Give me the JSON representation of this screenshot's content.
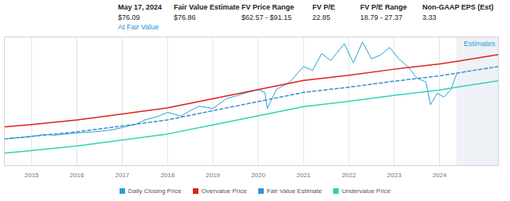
{
  "header": [
    {
      "label": "May 17, 2024",
      "value": "$76.09",
      "note": "At Fair Value"
    },
    {
      "label": "Fair Value Estimate",
      "value": "$76.86"
    },
    {
      "label": "FV Price Range",
      "value": "$62.57 - $91.15"
    },
    {
      "label": "FV P/E",
      "value": "22.85"
    },
    {
      "label": "FV P/E Range",
      "value": "18.79 - 27.37"
    },
    {
      "label": "Non-GAAP EPS (Est)",
      "value": "3.33"
    }
  ],
  "chart_data": {
    "type": "line",
    "log": "y",
    "grid": true,
    "tick_labels": "x",
    "legend": "bottom",
    "xlim": [
      2014.4,
      2025.3
    ],
    "xticks": [
      2015,
      2016,
      2017,
      2018,
      2019,
      2020,
      2021,
      2022,
      2023,
      2024
    ],
    "ylim": [
      20,
      130
    ],
    "estimates": {
      "label": "Estimates",
      "x_start": 2024.38
    },
    "series": [
      {
        "name": "Daily Closing Price",
        "color": "#2a9fd8",
        "line_style": "solid",
        "x": [
          2014.4,
          2014.7,
          2015.0,
          2015.3,
          2015.5,
          2015.8,
          2016.0,
          2016.3,
          2016.5,
          2016.8,
          2017.0,
          2017.3,
          2017.5,
          2017.8,
          2018.0,
          2018.3,
          2018.5,
          2018.7,
          2019.0,
          2019.3,
          2019.5,
          2019.7,
          2020.0,
          2020.15,
          2020.2,
          2020.4,
          2020.7,
          2021.0,
          2021.2,
          2021.4,
          2021.6,
          2021.9,
          2022.1,
          2022.3,
          2022.5,
          2022.7,
          2022.9,
          2023.1,
          2023.3,
          2023.5,
          2023.7,
          2023.8,
          2023.95,
          2024.1,
          2024.25,
          2024.38
        ],
        "values": [
          29.5,
          30.0,
          30.6,
          31.5,
          31.1,
          31.8,
          32.2,
          32.6,
          32.9,
          33.8,
          34.8,
          36.5,
          38.9,
          41.0,
          43.4,
          41.1,
          44.5,
          47.5,
          45.9,
          53.0,
          55.0,
          57.3,
          60.5,
          58.0,
          45.9,
          60.5,
          67.6,
          84.5,
          79.9,
          102.0,
          92.2,
          117.9,
          89.2,
          120.6,
          94.5,
          99.9,
          111.6,
          94.5,
          84.5,
          71.5,
          67.6,
          48.5,
          57.3,
          54.2,
          60.5,
          76.09
        ]
      },
      {
        "name": "Overvalue Price",
        "color": "#e0201b",
        "line_style": "solid",
        "x": [
          2014.4,
          2015,
          2016,
          2017,
          2018,
          2019,
          2020,
          2021,
          2022,
          2023,
          2024,
          2024.38,
          2025.3
        ],
        "values": [
          35.1,
          36.4,
          38.9,
          42.4,
          46.3,
          53.0,
          60.5,
          69.0,
          74.5,
          81.3,
          87.8,
          91.15,
          100.6
        ]
      },
      {
        "name": "Fair Value Estimate",
        "color": "#3a8fd0",
        "line_style": "dashed",
        "x": [
          2014.4,
          2015,
          2016,
          2017,
          2018,
          2019,
          2020,
          2021,
          2022,
          2023,
          2024,
          2024.38,
          2025.3
        ],
        "values": [
          29.5,
          30.6,
          32.7,
          35.6,
          38.9,
          44.5,
          50.8,
          58.0,
          62.6,
          68.3,
          73.8,
          76.86,
          84.5
        ]
      },
      {
        "name": "Undervalue Price",
        "color": "#2fd3b4",
        "line_style": "solid",
        "x": [
          2014.4,
          2015,
          2016,
          2017,
          2018,
          2019,
          2020,
          2021,
          2022,
          2023,
          2024,
          2024.38,
          2025.3
        ],
        "values": [
          24.0,
          24.9,
          26.6,
          29.0,
          31.7,
          36.2,
          41.3,
          47.2,
          51.0,
          55.6,
          60.1,
          62.57,
          68.8
        ]
      }
    ]
  }
}
